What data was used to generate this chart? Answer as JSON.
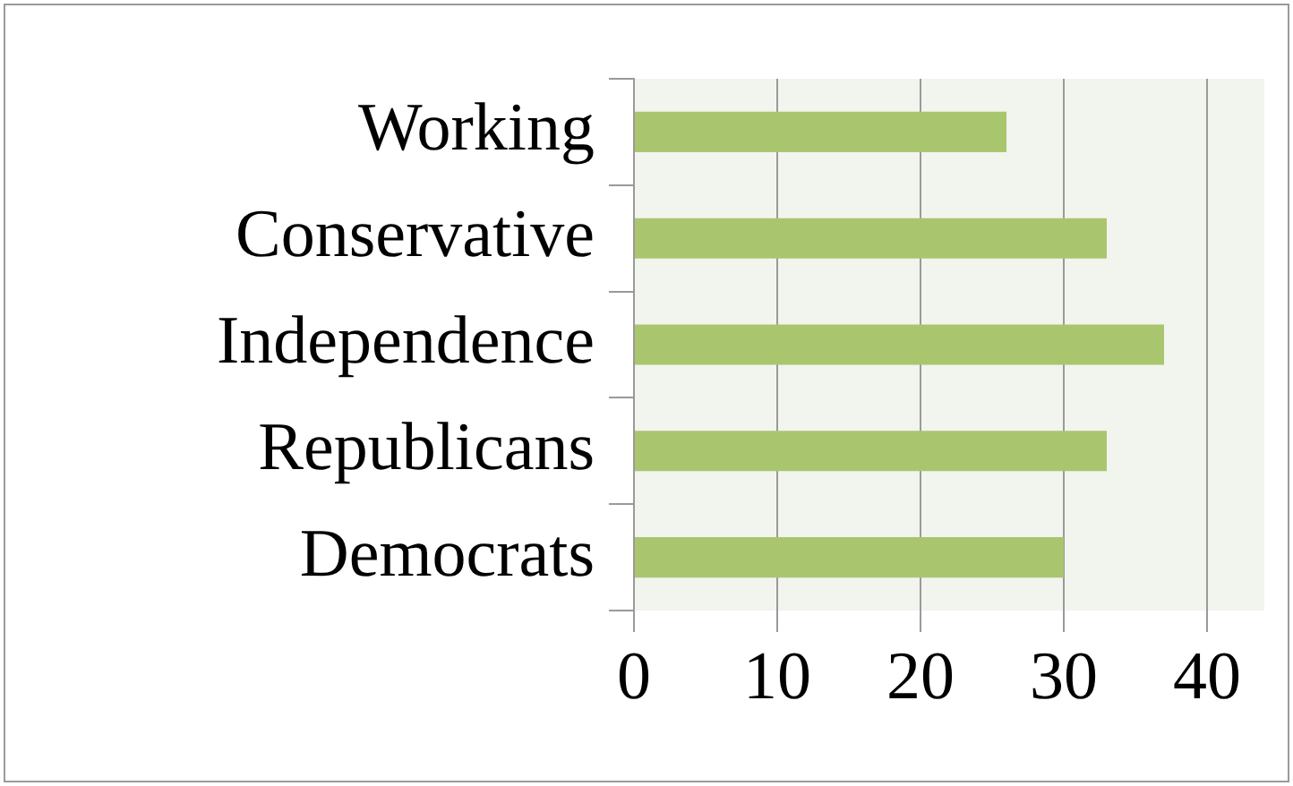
{
  "chart_data": {
    "type": "bar",
    "orientation": "horizontal",
    "categories": [
      "Working",
      "Conservative",
      "Independence",
      "Republicans",
      "Democrats"
    ],
    "values": [
      26,
      33,
      37,
      33,
      30
    ],
    "color": "#a9c66f",
    "xlim": [
      0,
      44
    ],
    "xticks": [
      0,
      10,
      20,
      30,
      40
    ],
    "grid": "x"
  }
}
